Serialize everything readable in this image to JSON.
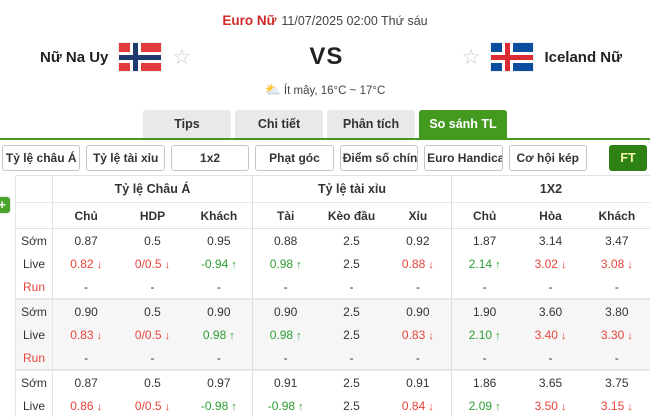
{
  "header": {
    "league": "Euro Nữ",
    "datetime": "11/07/2025 02:00 Thứ sáu"
  },
  "teams": {
    "home": "Nữ Na Uy",
    "away": "Iceland Nữ",
    "vs_label": "VS"
  },
  "weather": {
    "icon": "partly-cloudy",
    "text": "Ít mây, 16°C ~ 17°C"
  },
  "tabs": [
    {
      "name": "tips",
      "label": "Tips",
      "active": false
    },
    {
      "name": "chi-tiet",
      "label": "Chi tiết",
      "active": false
    },
    {
      "name": "phan-tich",
      "label": "Phân tích",
      "active": false
    },
    {
      "name": "so-sanh-tl",
      "label": "So sánh TL",
      "active": true
    }
  ],
  "filters": {
    "buttons": [
      {
        "name": "ty-le-chau-a",
        "label": "Tỷ lệ châu Á"
      },
      {
        "name": "ty-le-tai-xiu",
        "label": "Tỷ lệ tài xỉu"
      },
      {
        "name": "1x2",
        "label": "1x2"
      },
      {
        "name": "phat-goc",
        "label": "Phạt góc"
      },
      {
        "name": "diem-so-chinh-xac",
        "label": "Điểm số chính xác"
      },
      {
        "name": "euro-handicap",
        "label": "Euro Handicap"
      },
      {
        "name": "co-hoi-kep",
        "label": "Cơ hội kép"
      }
    ],
    "ft_label": "FT"
  },
  "plus_button": "+",
  "colors": {
    "accent_green": "#44991f",
    "ft_green": "#2e8113",
    "odds_red": "#e8453c",
    "odds_green": "#2e9e33",
    "league_red": "#cf2a27"
  },
  "odds_table": {
    "groups": [
      "Tỷ lệ Châu Á",
      "Tỷ lệ tài xỉu",
      "1X2"
    ],
    "columns": [
      "Chủ",
      "HDP",
      "Khách",
      "Tài",
      "Kèo đầu",
      "Xỉu",
      "Chủ",
      "Hòa",
      "Khách"
    ],
    "blocks": [
      {
        "shaded": false,
        "rows": [
          {
            "label": "Sớm",
            "label_red": false,
            "cells": [
              {
                "t": "0.87",
                "c": "",
                "a": ""
              },
              {
                "t": "0.5",
                "c": "",
                "a": ""
              },
              {
                "t": "0.95",
                "c": "",
                "a": ""
              },
              {
                "t": "0.88",
                "c": "",
                "a": ""
              },
              {
                "t": "2.5",
                "c": "",
                "a": ""
              },
              {
                "t": "0.92",
                "c": "",
                "a": ""
              },
              {
                "t": "1.87",
                "c": "",
                "a": ""
              },
              {
                "t": "3.14",
                "c": "",
                "a": ""
              },
              {
                "t": "3.47",
                "c": "",
                "a": ""
              }
            ]
          },
          {
            "label": "Live",
            "label_red": false,
            "cells": [
              {
                "t": "0.82",
                "c": "red",
                "a": "down"
              },
              {
                "t": "0/0.5",
                "c": "red",
                "a": "down"
              },
              {
                "t": "-0.94",
                "c": "green",
                "a": "up"
              },
              {
                "t": "0.98",
                "c": "green",
                "a": "up"
              },
              {
                "t": "2.5",
                "c": "",
                "a": ""
              },
              {
                "t": "0.88",
                "c": "red",
                "a": "down"
              },
              {
                "t": "2.14",
                "c": "green",
                "a": "up"
              },
              {
                "t": "3.02",
                "c": "red",
                "a": "down"
              },
              {
                "t": "3.08",
                "c": "red",
                "a": "down"
              }
            ]
          },
          {
            "label": "Run",
            "label_red": true,
            "cells": [
              {
                "t": "-",
                "c": "",
                "a": ""
              },
              {
                "t": "-",
                "c": "",
                "a": ""
              },
              {
                "t": "-",
                "c": "",
                "a": ""
              },
              {
                "t": "-",
                "c": "",
                "a": ""
              },
              {
                "t": "-",
                "c": "",
                "a": ""
              },
              {
                "t": "-",
                "c": "",
                "a": ""
              },
              {
                "t": "-",
                "c": "",
                "a": ""
              },
              {
                "t": "-",
                "c": "",
                "a": ""
              },
              {
                "t": "-",
                "c": "",
                "a": ""
              }
            ]
          }
        ]
      },
      {
        "shaded": true,
        "rows": [
          {
            "label": "Sớm",
            "label_red": false,
            "cells": [
              {
                "t": "0.90",
                "c": "",
                "a": ""
              },
              {
                "t": "0.5",
                "c": "",
                "a": ""
              },
              {
                "t": "0.90",
                "c": "",
                "a": ""
              },
              {
                "t": "0.90",
                "c": "",
                "a": ""
              },
              {
                "t": "2.5",
                "c": "",
                "a": ""
              },
              {
                "t": "0.90",
                "c": "",
                "a": ""
              },
              {
                "t": "1.90",
                "c": "",
                "a": ""
              },
              {
                "t": "3.60",
                "c": "",
                "a": ""
              },
              {
                "t": "3.80",
                "c": "",
                "a": ""
              }
            ]
          },
          {
            "label": "Live",
            "label_red": false,
            "cells": [
              {
                "t": "0.83",
                "c": "red",
                "a": "down"
              },
              {
                "t": "0/0.5",
                "c": "red",
                "a": "down"
              },
              {
                "t": "0.98",
                "c": "green",
                "a": "up"
              },
              {
                "t": "0.98",
                "c": "green",
                "a": "up"
              },
              {
                "t": "2.5",
                "c": "",
                "a": ""
              },
              {
                "t": "0.83",
                "c": "red",
                "a": "down"
              },
              {
                "t": "2.10",
                "c": "green",
                "a": "up"
              },
              {
                "t": "3.40",
                "c": "red",
                "a": "down"
              },
              {
                "t": "3.30",
                "c": "red",
                "a": "down"
              }
            ]
          },
          {
            "label": "Run",
            "label_red": true,
            "cells": [
              {
                "t": "-",
                "c": "",
                "a": ""
              },
              {
                "t": "-",
                "c": "",
                "a": ""
              },
              {
                "t": "-",
                "c": "",
                "a": ""
              },
              {
                "t": "-",
                "c": "",
                "a": ""
              },
              {
                "t": "-",
                "c": "",
                "a": ""
              },
              {
                "t": "-",
                "c": "",
                "a": ""
              },
              {
                "t": "-",
                "c": "",
                "a": ""
              },
              {
                "t": "-",
                "c": "",
                "a": ""
              },
              {
                "t": "-",
                "c": "",
                "a": ""
              }
            ]
          }
        ]
      },
      {
        "shaded": false,
        "rows": [
          {
            "label": "Sớm",
            "label_red": false,
            "cells": [
              {
                "t": "0.87",
                "c": "",
                "a": ""
              },
              {
                "t": "0.5",
                "c": "",
                "a": ""
              },
              {
                "t": "0.97",
                "c": "",
                "a": ""
              },
              {
                "t": "0.91",
                "c": "",
                "a": ""
              },
              {
                "t": "2.5",
                "c": "",
                "a": ""
              },
              {
                "t": "0.91",
                "c": "",
                "a": ""
              },
              {
                "t": "1.86",
                "c": "",
                "a": ""
              },
              {
                "t": "3.65",
                "c": "",
                "a": ""
              },
              {
                "t": "3.75",
                "c": "",
                "a": ""
              }
            ]
          },
          {
            "label": "Live",
            "label_red": false,
            "cells": [
              {
                "t": "0.86",
                "c": "red",
                "a": "down"
              },
              {
                "t": "0/0.5",
                "c": "red",
                "a": "down"
              },
              {
                "t": "-0.98",
                "c": "green",
                "a": "up"
              },
              {
                "t": "-0.98",
                "c": "green",
                "a": "up"
              },
              {
                "t": "2.5",
                "c": "",
                "a": ""
              },
              {
                "t": "0.84",
                "c": "red",
                "a": "down"
              },
              {
                "t": "2.09",
                "c": "green",
                "a": "up"
              },
              {
                "t": "3.50",
                "c": "red",
                "a": "down"
              },
              {
                "t": "3.15",
                "c": "red",
                "a": "down"
              }
            ]
          }
        ]
      }
    ]
  }
}
